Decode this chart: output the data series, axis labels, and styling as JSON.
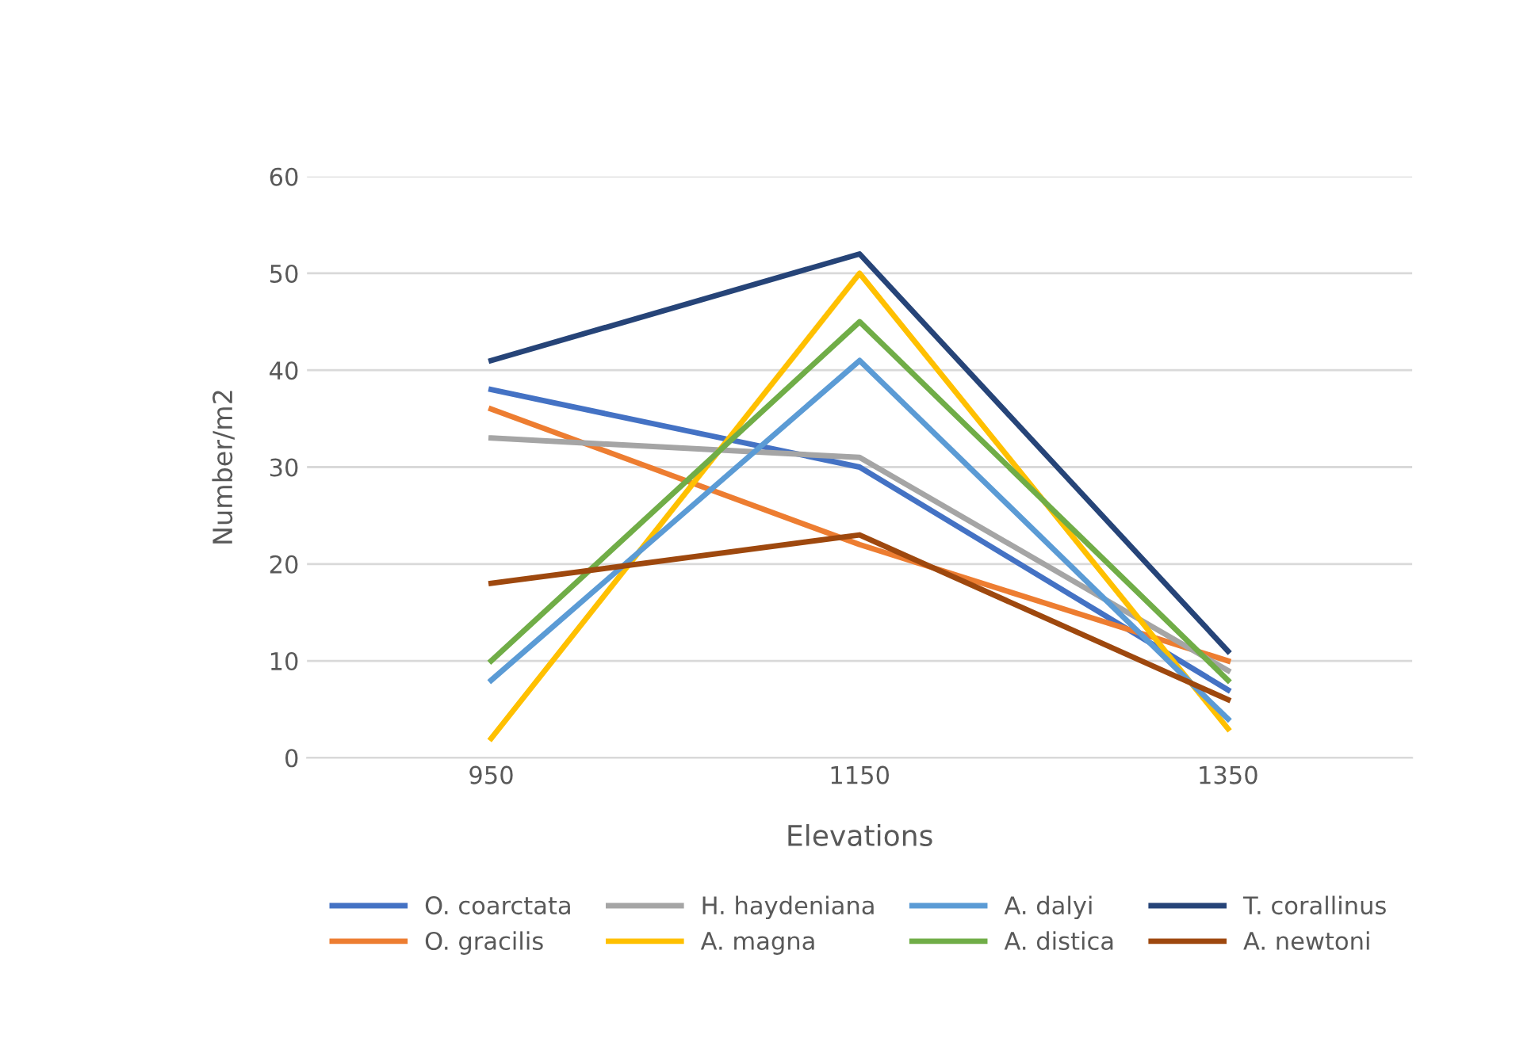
{
  "chart_data": {
    "type": "line",
    "xlabel": "Elevations",
    "ylabel": "Number/m2",
    "categories": [
      "950",
      "1150",
      "1350"
    ],
    "ylim": [
      0,
      60
    ],
    "yticks": [
      0,
      10,
      20,
      30,
      40,
      50,
      60
    ],
    "grid": "y",
    "legend": "bottom",
    "marker": "none",
    "series": [
      {
        "name": "O. coarctata",
        "color": "#4472c4",
        "values": [
          38,
          30,
          7
        ]
      },
      {
        "name": "O. gracilis",
        "color": "#ed7d31",
        "values": [
          36,
          22,
          10
        ]
      },
      {
        "name": "H. haydeniana",
        "color": "#a5a5a5",
        "values": [
          33,
          31,
          9
        ]
      },
      {
        "name": "A. magna",
        "color": "#ffc000",
        "values": [
          2,
          50,
          3
        ]
      },
      {
        "name": "A. dalyi",
        "color": "#5b9bd5",
        "values": [
          8,
          41,
          4
        ]
      },
      {
        "name": "A. distica",
        "color": "#70ad47",
        "values": [
          10,
          45,
          8
        ]
      },
      {
        "name": "T. corallinus",
        "color": "#264478",
        "values": [
          41,
          52,
          11
        ]
      },
      {
        "name": "A. newtoni",
        "color": "#9e480e",
        "values": [
          18,
          23,
          6
        ]
      }
    ]
  }
}
